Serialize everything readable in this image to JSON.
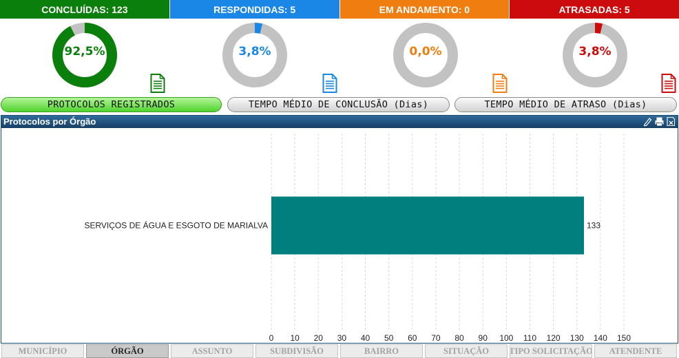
{
  "status": [
    {
      "label": "CONCLUÍDAS: 123",
      "color": "#0b7f0b"
    },
    {
      "label": "RESPONDIDAS: 5",
      "color": "#1a86e6"
    },
    {
      "label": "EM ANDAMENTO: 0",
      "color": "#ef7d10"
    },
    {
      "label": "ATRASADAS: 5",
      "color": "#cc0c0c"
    }
  ],
  "donuts": [
    {
      "percent": 92.5,
      "text": "92,5%",
      "color": "#0b7f0b",
      "icon": "document-green-icon"
    },
    {
      "percent": 3.8,
      "text": "3,8%",
      "color": "#1a86e6",
      "icon": "document-blue-icon"
    },
    {
      "percent": 0.0,
      "text": "0,0%",
      "color": "#ef7d10",
      "icon": "document-orange-icon"
    },
    {
      "percent": 3.8,
      "text": "3,8%",
      "color": "#cc0c0c",
      "icon": "document-red-icon"
    }
  ],
  "pills": {
    "registered": "PROTOCOLOS REGISTRADOS",
    "avg_conclusion": "TEMPO MÉDIO DE CONCLUSÃO (Dias)",
    "avg_delay": "TEMPO MÉDIO DE ATRASO (Dias)"
  },
  "panel": {
    "title": "Protocolos por Órgão",
    "tools": [
      "edit-icon",
      "print-icon",
      "export-icon"
    ]
  },
  "chart_data": {
    "type": "bar",
    "orientation": "horizontal",
    "title": "",
    "xlabel": "",
    "ylabel": "",
    "categories": [
      "SERVIÇOS DE ÁGUA E ESGOTO DE MARIALVA"
    ],
    "values": [
      133
    ],
    "data_labels": [
      "133"
    ],
    "xlim": [
      0,
      150
    ],
    "xticks": [
      0,
      10,
      20,
      30,
      40,
      50,
      60,
      70,
      80,
      90,
      100,
      110,
      120,
      130,
      140,
      150
    ],
    "bar_color": "#007f7f",
    "grid": "vertical-dashed",
    "legend": "none"
  },
  "tabs": [
    {
      "label": "MUNICÍPIO",
      "active": false
    },
    {
      "label": "ÓRGÃO",
      "active": true
    },
    {
      "label": "ASSUNTO",
      "active": false
    },
    {
      "label": "SUBDIVISÃO",
      "active": false
    },
    {
      "label": "BAIRRO",
      "active": false
    },
    {
      "label": "SITUAÇÃO",
      "active": false
    },
    {
      "label": "TIPO SOLICITAÇÃO",
      "active": false
    },
    {
      "label": "ATENDENTE",
      "active": false
    }
  ]
}
